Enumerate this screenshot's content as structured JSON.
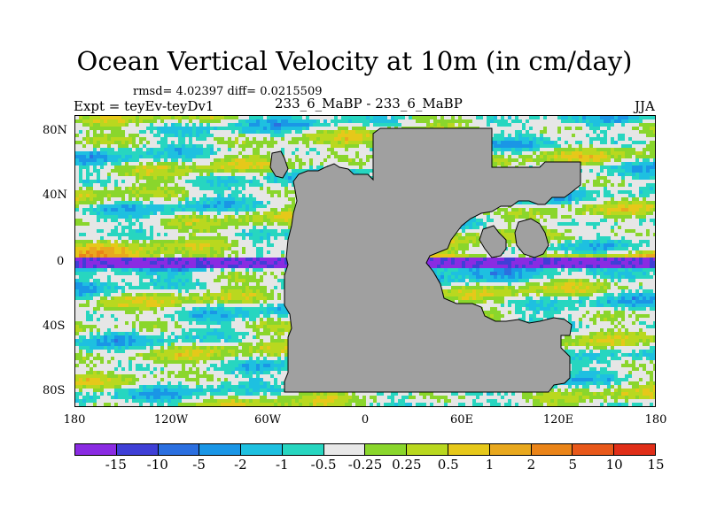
{
  "title": "Ocean Vertical Velocity at 10m (in cm/day)",
  "stats": "rmsd= 4.02397 diff= 0.0215509",
  "experiment": "Expt = teyEv-teyDv1",
  "runs": "233_6_MaBP - 233_6_MaBP",
  "season": "JJA",
  "land_color": "#a0a0a0",
  "lat_labels": [
    "80N",
    "40N",
    "0",
    "40S",
    "80S"
  ],
  "lon_labels": [
    "180",
    "120W",
    "60W",
    "0",
    "60E",
    "120E",
    "180"
  ],
  "colorbar": {
    "colors": [
      "#8a2be2",
      "#3f3fd6",
      "#2b6fe0",
      "#1a96e6",
      "#1ec0e0",
      "#27d6c0",
      "#e8e8e8",
      "#8ad62c",
      "#b9d81f",
      "#e6c81a",
      "#e8a81e",
      "#ea8418",
      "#e8581a",
      "#e02e18"
    ],
    "labels": [
      "-15",
      "-10",
      "-5",
      "-2",
      "-1",
      "-0.5",
      "-0.25",
      "0.25",
      "0.5",
      "1",
      "2",
      "5",
      "10",
      "15"
    ]
  },
  "chart_data": {
    "type": "heatmap",
    "title": "Ocean Vertical Velocity at 10m (in cm/day)",
    "variable": "Ocean Vertical Velocity at 10m",
    "units": "cm/day",
    "x_range": [
      -180,
      180
    ],
    "y_range": [
      -90,
      90
    ],
    "contour_levels": [
      -15,
      -10,
      -5,
      -2,
      -1,
      -0.5,
      -0.25,
      0.25,
      0.5,
      1,
      2,
      5,
      10,
      15
    ],
    "rmsd": 4.02397,
    "diff": 0.0215509
  }
}
